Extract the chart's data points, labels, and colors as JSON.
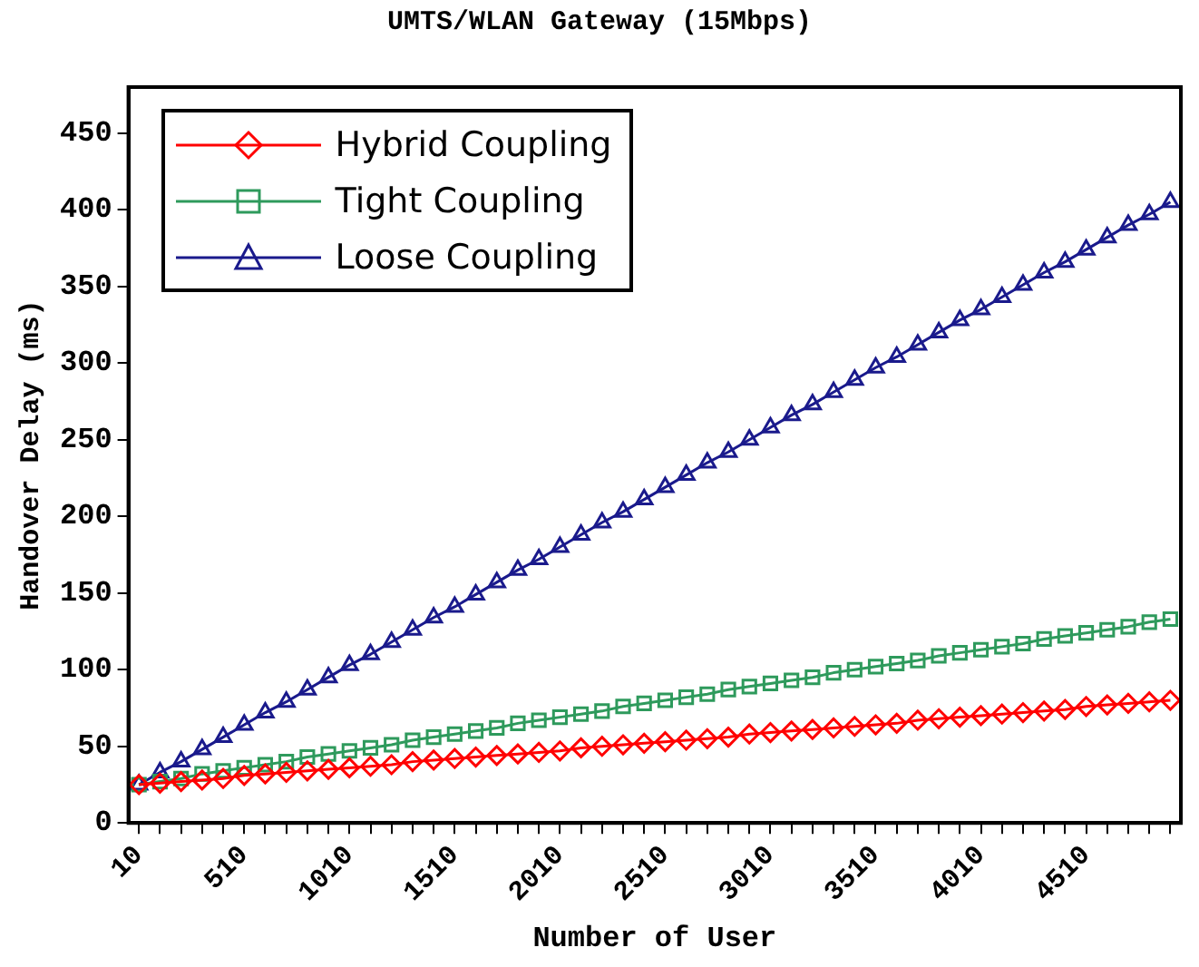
{
  "chart_data": {
    "type": "line",
    "title": "UMTS/WLAN Gateway (15Mbps)",
    "xlabel": "Number of User",
    "ylabel": "Handover Delay (ms)",
    "categories": [
      "10",
      null,
      null,
      null,
      null,
      "510",
      null,
      null,
      null,
      null,
      "1010",
      null,
      null,
      null,
      null,
      "1510",
      null,
      null,
      null,
      null,
      "2010",
      null,
      null,
      null,
      null,
      "2510",
      null,
      null,
      null,
      null,
      "3010",
      null,
      null,
      null,
      null,
      "3510",
      null,
      null,
      null,
      null,
      "4010",
      null,
      null,
      null,
      null,
      "4510",
      null,
      null,
      null,
      null
    ],
    "ylim": [
      0,
      480
    ],
    "yticks": [
      0,
      50,
      100,
      150,
      200,
      250,
      300,
      350,
      400,
      450
    ],
    "grid": false,
    "legend": "top left",
    "line_style": "solid",
    "series": [
      {
        "name": "Hybrid Coupling",
        "color": "#ff0000",
        "marker": "diamond",
        "values": [
          25,
          26,
          27,
          28,
          29,
          31,
          32,
          33,
          34,
          35,
          36,
          37,
          38,
          40,
          41,
          42,
          43,
          44,
          45,
          46,
          47,
          49,
          50,
          51,
          52,
          53,
          54,
          55,
          56,
          58,
          59,
          60,
          61,
          62,
          63,
          64,
          65,
          67,
          68,
          69,
          70,
          71,
          72,
          73,
          74,
          76,
          77,
          78,
          79,
          80
        ]
      },
      {
        "name": "Tight Coupling",
        "color": "#2e9a5c",
        "marker": "square",
        "values": [
          25,
          27,
          29,
          32,
          34,
          36,
          38,
          40,
          43,
          45,
          47,
          49,
          51,
          54,
          56,
          58,
          60,
          62,
          65,
          67,
          69,
          71,
          73,
          76,
          78,
          80,
          82,
          84,
          87,
          89,
          91,
          93,
          95,
          98,
          100,
          102,
          104,
          106,
          109,
          111,
          113,
          115,
          117,
          120,
          122,
          124,
          126,
          128,
          131,
          133
        ]
      },
      {
        "name": "Loose Coupling",
        "color": "#1a1a8c",
        "marker": "triangle",
        "values": [
          25,
          33,
          40,
          48,
          56,
          64,
          72,
          79,
          87,
          95,
          103,
          110,
          118,
          126,
          134,
          141,
          149,
          157,
          165,
          172,
          180,
          188,
          196,
          203,
          211,
          219,
          227,
          235,
          242,
          250,
          258,
          266,
          273,
          281,
          289,
          297,
          304,
          312,
          320,
          328,
          335,
          343,
          351,
          359,
          366,
          374,
          382,
          390,
          397,
          405
        ]
      }
    ]
  }
}
